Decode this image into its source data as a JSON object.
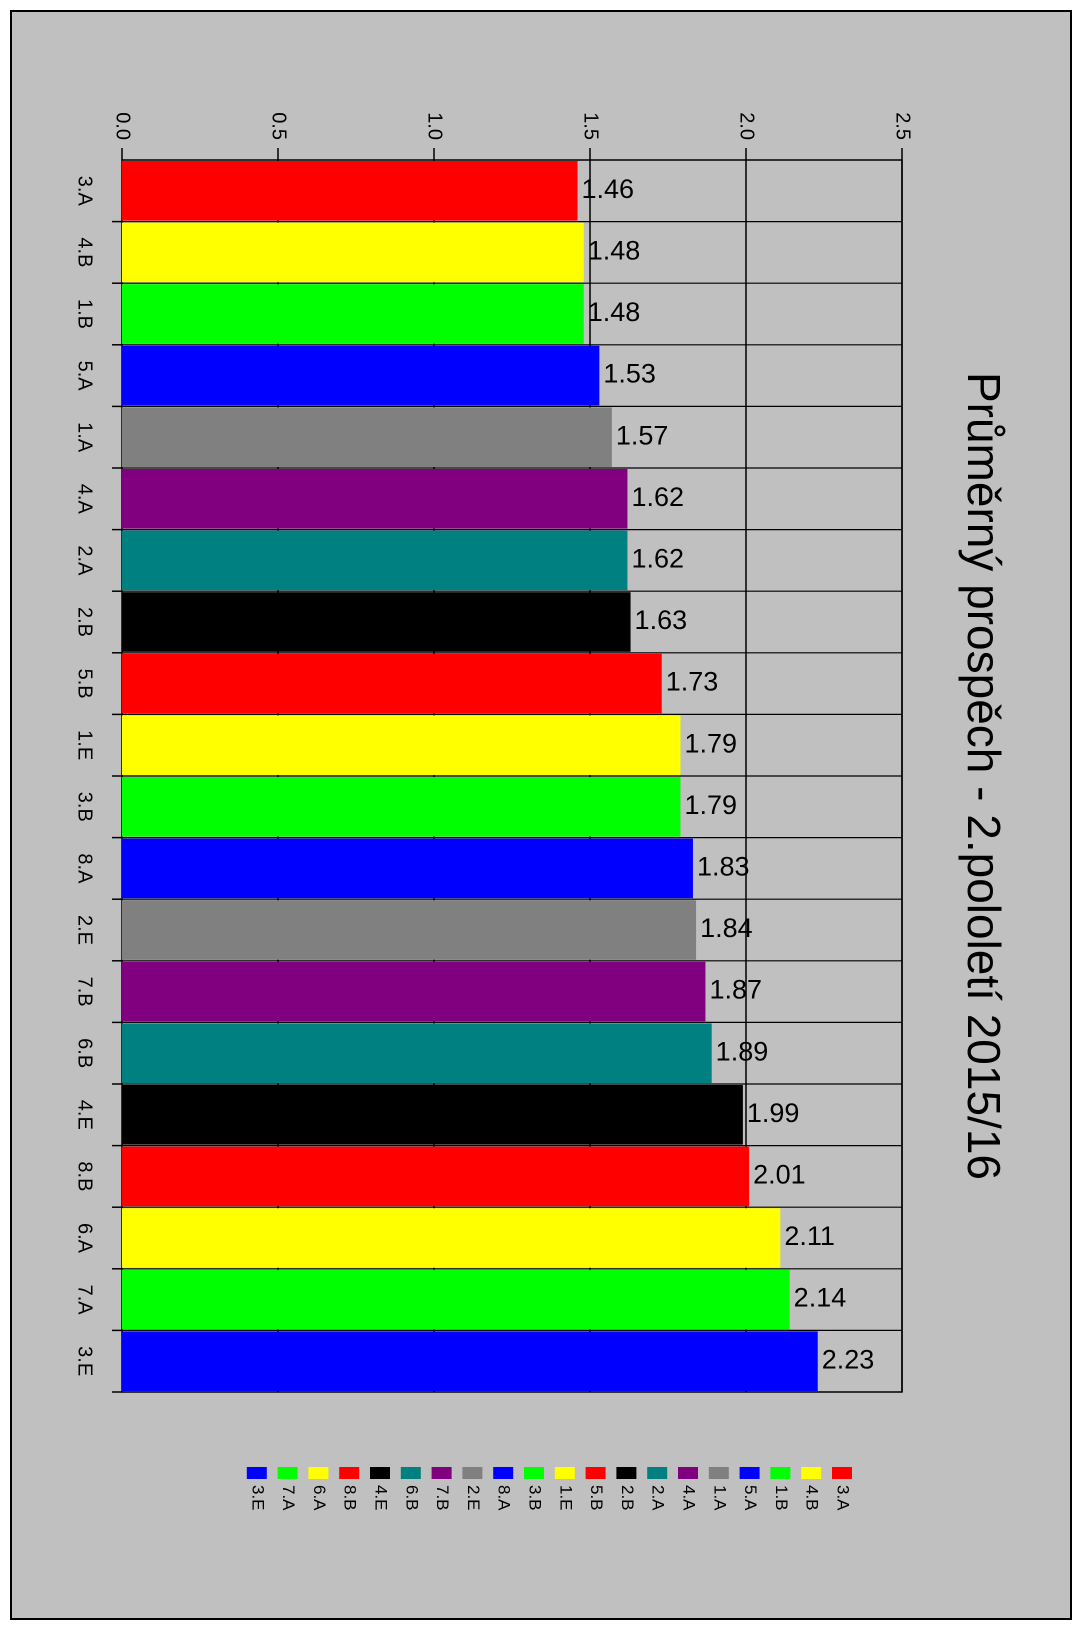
{
  "chart_data": {
    "type": "bar",
    "orientation": "horizontal",
    "title": "Průměrný prospěch - 2.pololetí 2015/16",
    "xlabel": "",
    "ylabel": "",
    "xlim": [
      0,
      2.5
    ],
    "x_ticks": [
      "0.0",
      "0.5",
      "1.0",
      "1.5",
      "2.0",
      "2.5"
    ],
    "grid": "vertical",
    "legend_position": "bottom",
    "categories": [
      "3.A",
      "4.B",
      "1.B",
      "5.A",
      "1.A",
      "4.A",
      "2.A",
      "2.B",
      "5.B",
      "1.E",
      "3.B",
      "8.A",
      "2.E",
      "7.B",
      "6.B",
      "4.E",
      "8.B",
      "6.A",
      "7.A",
      "3.E"
    ],
    "values": [
      1.46,
      1.48,
      1.48,
      1.53,
      1.57,
      1.62,
      1.62,
      1.63,
      1.73,
      1.79,
      1.79,
      1.83,
      1.84,
      1.87,
      1.89,
      1.99,
      2.01,
      2.11,
      2.14,
      2.23
    ],
    "value_labels": [
      "1.46",
      "1.48",
      "1.48",
      "1.53",
      "1.57",
      "1.62",
      "1.62",
      "1.63",
      "1.73",
      "1.79",
      "1.79",
      "1.83",
      "1.84",
      "1.87",
      "1.89",
      "1.99",
      "2.01",
      "2.11",
      "2.14",
      "2.23"
    ],
    "colors": [
      "#ff0000",
      "#ffff00",
      "#00ff00",
      "#0000ff",
      "#808080",
      "#800080",
      "#008080",
      "#000000",
      "#ff0000",
      "#ffff00",
      "#00ff00",
      "#0000ff",
      "#808080",
      "#800080",
      "#008080",
      "#000000",
      "#ff0000",
      "#ffff00",
      "#00ff00",
      "#0000ff"
    ],
    "background": "#c0c0c0"
  }
}
